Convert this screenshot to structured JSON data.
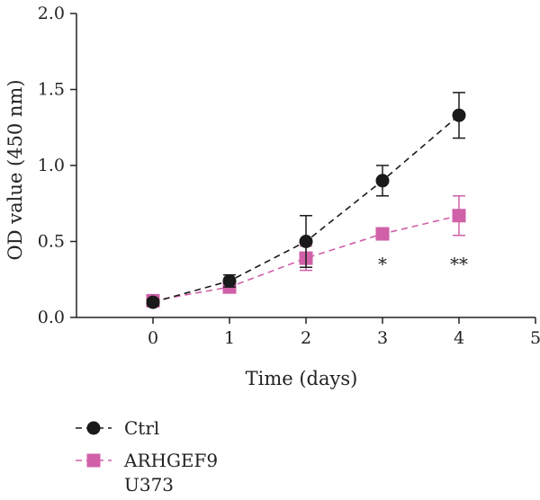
{
  "chart_data": {
    "type": "line",
    "xlabel": "Time (days)",
    "ylabel": "OD value (450 nm)",
    "xlim": [
      -1,
      5
    ],
    "ylim": [
      0,
      2
    ],
    "x_ticks": [
      "0",
      "1",
      "2",
      "3",
      "4",
      "5"
    ],
    "y_ticks": [
      "0.0",
      "0.5",
      "1.0",
      "1.5",
      "2.0"
    ],
    "grid": false,
    "legend_position": "bottom-left",
    "x": [
      0,
      1,
      2,
      3,
      4
    ],
    "series": [
      {
        "name": "Ctrl",
        "values": [
          0.1,
          0.24,
          0.5,
          0.9,
          1.33
        ],
        "errors": [
          0.02,
          0.04,
          0.17,
          0.1,
          0.15
        ],
        "color": "#1a1a1a",
        "marker": "circle",
        "line_style": "dashed"
      },
      {
        "name": "ARHGEF9",
        "values": [
          0.11,
          0.2,
          0.39,
          0.55,
          0.67
        ],
        "errors": [
          0.02,
          0.02,
          0.08,
          0.02,
          0.13
        ],
        "color": "#d060a8",
        "marker": "square",
        "line_style": "dashed"
      }
    ],
    "annotations": [
      {
        "x": 3,
        "y": 0.37,
        "text": "*"
      },
      {
        "x": 4,
        "y": 0.37,
        "text": "**"
      }
    ],
    "legend_extra_text": "U373"
  }
}
